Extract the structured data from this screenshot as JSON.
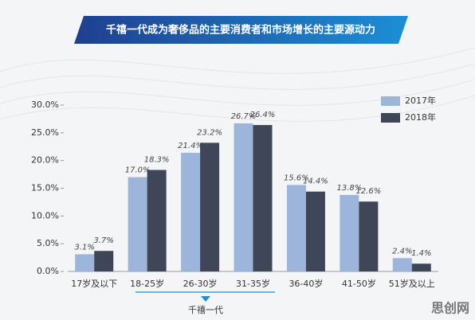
{
  "chart_data": {
    "type": "bar",
    "title": "千禧一代成为奢侈品的主要消费者和市场增长的主要源动力",
    "categories": [
      "17岁及以下",
      "18-25岁",
      "26-30岁",
      "31-35岁",
      "36-40岁",
      "41-50岁",
      "51岁及以上"
    ],
    "series": [
      {
        "name": "2017年",
        "color": "#9db4db",
        "values": [
          3.1,
          17.0,
          21.4,
          26.7,
          15.6,
          13.8,
          2.4
        ],
        "value_labels": [
          "3.1%",
          "17.0%",
          "21.4%",
          "26.7%",
          "15.6%",
          "13.8%",
          "2.4%"
        ]
      },
      {
        "name": "2018年",
        "color": "#3f4658",
        "values": [
          3.7,
          18.3,
          23.2,
          26.4,
          14.4,
          12.6,
          1.4
        ],
        "value_labels": [
          "3.7%",
          "18.3%",
          "23.2%",
          "26.4%",
          "14.4%",
          "12.6%",
          "1.4%"
        ]
      }
    ],
    "ylim": [
      0,
      30
    ],
    "yticks": [
      {
        "value": 0,
        "label": "0.0%"
      },
      {
        "value": 5,
        "label": "5.0%"
      },
      {
        "value": 10,
        "label": "10.0%"
      },
      {
        "value": 15,
        "label": "15.0%"
      },
      {
        "value": 20,
        "label": "20.0%"
      },
      {
        "value": 25,
        "label": "25.0%"
      },
      {
        "value": 30,
        "label": "30.0%"
      }
    ],
    "annotation": "千禧一代",
    "watermark": "思创网",
    "legend": "top-right"
  }
}
